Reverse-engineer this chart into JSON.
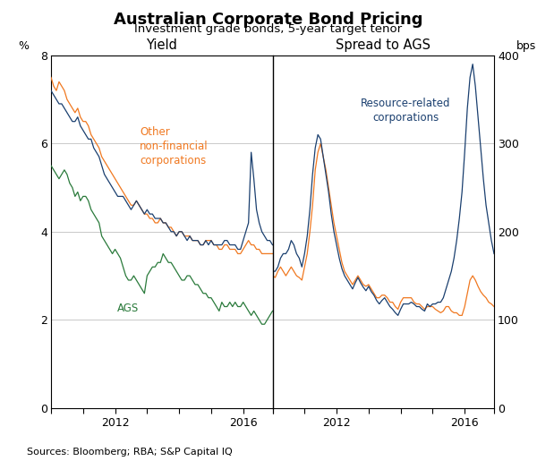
{
  "title": "Australian Corporate Bond Pricing",
  "subtitle": "Investment grade bonds, 5-year target tenor",
  "source_text": "Sources: Bloomberg; RBA; S&P Capital IQ",
  "panel_left_label": "Yield",
  "panel_right_label": "Spread to AGS",
  "ylabel_left": "%",
  "ylabel_right": "bps",
  "ylim_left": [
    0,
    8
  ],
  "ylim_right": [
    0,
    400
  ],
  "yticks_left": [
    0,
    2,
    4,
    6,
    8
  ],
  "yticks_right": [
    0,
    100,
    200,
    300,
    400
  ],
  "colors": {
    "orange": "#F07820",
    "blue": "#1A3F6F",
    "green": "#2A7A3B",
    "grid": "#C0C0C0"
  },
  "left_annotations": {
    "orange_label": "Other\nnon-financial\ncorporations",
    "green_label": "AGS"
  },
  "right_annotations": {
    "blue_label": "Resource-related\ncorporations"
  },
  "figsize": [
    6.0,
    5.15
  ],
  "dpi": 100
}
